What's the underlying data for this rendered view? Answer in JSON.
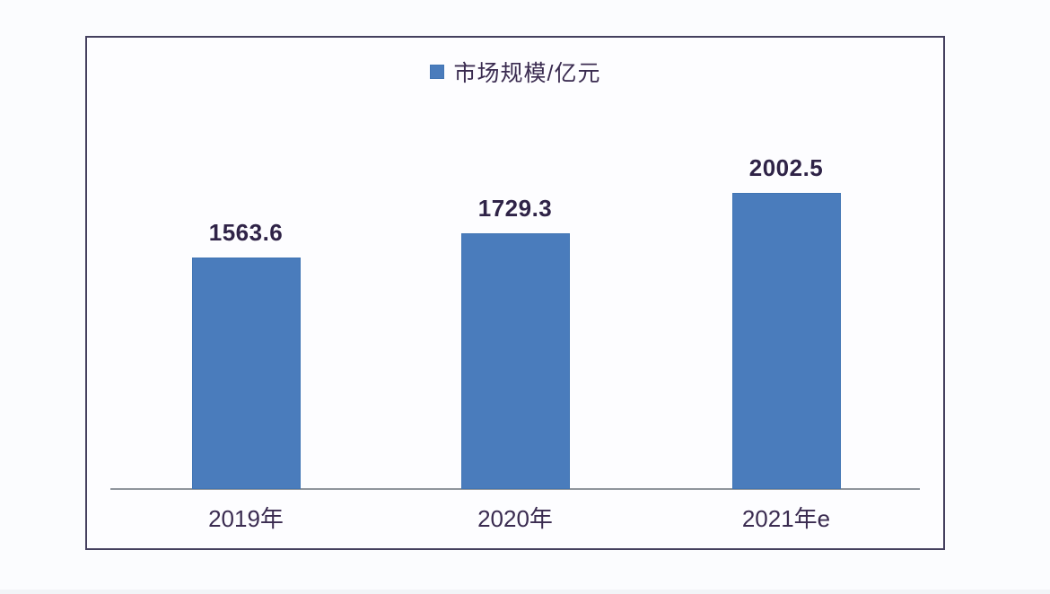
{
  "chart_data": {
    "type": "bar",
    "title": "",
    "legend": "市场规模/亿元",
    "legend_position": "top-center",
    "series_name": "市场规模",
    "unit": "亿元",
    "categories": [
      "2019年",
      "2020年",
      "2021年e"
    ],
    "values": [
      1563.6,
      1729.3,
      2002.5
    ],
    "data_labels_shown": true,
    "ylim": [
      0,
      2430
    ],
    "grid": false,
    "y_axis_shown": false,
    "colors": {
      "bar_fill": "#4a7cbc",
      "bar_border": "#4175b4",
      "value_label_text": "#2f2347",
      "axis_label_text": "#3a2b50",
      "legend_text": "#3a2b50",
      "frame_border": "#44405e",
      "axis_line": "#8f959c",
      "background": "#fbfcfe"
    }
  }
}
